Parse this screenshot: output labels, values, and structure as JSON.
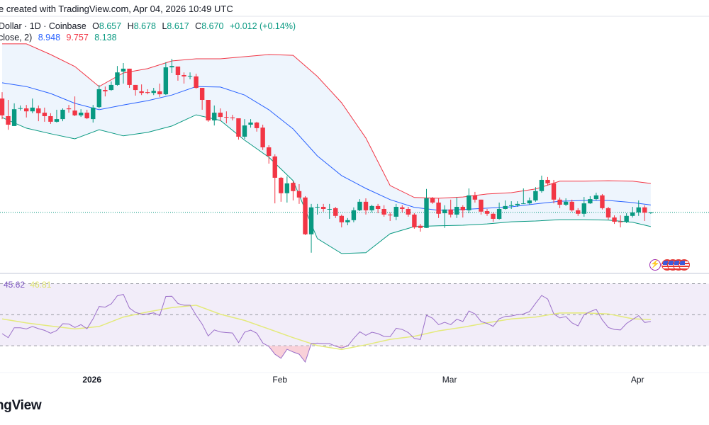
{
  "header": {
    "text": "e created with TradingView.com, Apr 04, 2026 10:49 UTC"
  },
  "legend": {
    "symbol": "Dollar · 1D · Coinbase",
    "o_label": "O",
    "o": "8.657",
    "h_label": "H",
    "h": "8.678",
    "l_label": "L",
    "l": "8.617",
    "c_label": "C",
    "c": "8.670",
    "change": "+0.012 (+0.14%)",
    "bb_label": "close, 2)",
    "bb_basis": "8.948",
    "bb_upper": "9.757",
    "bb_lower": "8.138"
  },
  "rsi_legend": {
    "rsi": "45.62",
    "rsi_ma": "46.81"
  },
  "logo": {
    "text": "ngView"
  },
  "colors": {
    "up": "#089981",
    "down": "#f23645",
    "basis": "#2962ff",
    "upper": "#f23645",
    "lower": "#089981",
    "band_fill": "#eef5fd",
    "rsi": "#9b6fc9",
    "rsi_ma": "#e4ea7c",
    "rsi_bg": "#f2edf9",
    "price_line": "#089981"
  },
  "icons": [
    "lightning-icon",
    "us-flag-icon",
    "us-flag-icon",
    "us-flag-icon",
    "us-flag-icon"
  ],
  "chart_data": [
    {
      "type": "candlestick",
      "ylim": [
        6.41,
        15.36
      ],
      "grid": false,
      "last_price": 8.67,
      "x_ticks": [
        {
          "date": "2026-01-01",
          "label": "2026",
          "bold": true
        },
        {
          "date": "2026-02-01",
          "label": "Feb"
        },
        {
          "date": "2026-03-01",
          "label": "Mar"
        },
        {
          "date": "2026-04-01",
          "label": "Apr"
        }
      ],
      "candles": [
        [
          "2025-12-18",
          12.94,
          13.18,
          12.17,
          12.31
        ],
        [
          "2025-12-19",
          12.28,
          12.89,
          11.77,
          11.96
        ],
        [
          "2025-12-20",
          11.91,
          12.76,
          11.91,
          12.54
        ],
        [
          "2025-12-21",
          12.56,
          12.68,
          12.49,
          12.58
        ],
        [
          "2025-12-22",
          12.57,
          12.7,
          12.23,
          12.46
        ],
        [
          "2025-12-23",
          12.46,
          12.94,
          12.39,
          12.6
        ],
        [
          "2025-12-24",
          12.57,
          12.68,
          12.09,
          12.39
        ],
        [
          "2025-12-25",
          12.41,
          12.6,
          12.07,
          12.28
        ],
        [
          "2025-12-26",
          12.28,
          12.39,
          11.99,
          12.07
        ],
        [
          "2025-12-27",
          12.07,
          12.52,
          12.04,
          12.17
        ],
        [
          "2025-12-28",
          12.17,
          12.57,
          12.09,
          12.52
        ],
        [
          "2025-12-29",
          12.57,
          12.7,
          12.41,
          12.54
        ],
        [
          "2025-12-30",
          12.49,
          13.02,
          12.28,
          12.31
        ],
        [
          "2025-12-31",
          12.31,
          12.54,
          12.25,
          12.41
        ],
        [
          "2026-01-01",
          12.41,
          12.52,
          12.17,
          12.2
        ],
        [
          "2026-01-02",
          12.17,
          12.7,
          12.04,
          12.6
        ],
        [
          "2026-01-03",
          12.62,
          13.45,
          12.57,
          13.29
        ],
        [
          "2026-01-04",
          13.26,
          13.39,
          13.02,
          13.21
        ],
        [
          "2026-01-05",
          13.26,
          13.58,
          13.23,
          13.45
        ],
        [
          "2026-01-06",
          13.45,
          14.16,
          13.42,
          13.92
        ],
        [
          "2026-01-07",
          13.95,
          14.27,
          13.5,
          14.06
        ],
        [
          "2026-01-08",
          14.06,
          14.06,
          13.34,
          13.45
        ],
        [
          "2026-01-09",
          13.45,
          13.45,
          13.05,
          13.26
        ],
        [
          "2026-01-10",
          13.21,
          13.47,
          13.07,
          13.15
        ],
        [
          "2026-01-11",
          13.18,
          13.29,
          13.1,
          13.15
        ],
        [
          "2026-01-12",
          13.15,
          13.34,
          13.07,
          13.23
        ],
        [
          "2026-01-13",
          13.21,
          13.5,
          13.0,
          13.1
        ],
        [
          "2026-01-14",
          13.1,
          14.3,
          13.07,
          14.11
        ],
        [
          "2026-01-15",
          14.11,
          14.43,
          13.9,
          14.16
        ],
        [
          "2026-01-16",
          14.14,
          14.14,
          13.61,
          13.82
        ],
        [
          "2026-01-17",
          13.82,
          13.92,
          13.5,
          13.77
        ],
        [
          "2026-01-18",
          13.77,
          13.92,
          13.66,
          13.79
        ],
        [
          "2026-01-19",
          13.77,
          13.87,
          13.31,
          13.34
        ],
        [
          "2026-01-20",
          13.34,
          13.34,
          12.52,
          12.89
        ],
        [
          "2026-01-21",
          12.89,
          12.89,
          12.07,
          12.12
        ],
        [
          "2026-01-22",
          12.12,
          12.68,
          11.93,
          12.41
        ],
        [
          "2026-01-23",
          12.41,
          12.57,
          12.09,
          12.25
        ],
        [
          "2026-01-24",
          12.25,
          12.46,
          12.01,
          12.23
        ],
        [
          "2026-01-25",
          12.23,
          12.33,
          12.12,
          12.2
        ],
        [
          "2026-01-26",
          12.2,
          12.2,
          11.4,
          11.51
        ],
        [
          "2026-01-27",
          11.51,
          12.17,
          11.43,
          11.93
        ],
        [
          "2026-01-28",
          11.96,
          12.17,
          11.85,
          12.04
        ],
        [
          "2026-01-29",
          12.04,
          12.07,
          11.7,
          11.83
        ],
        [
          "2026-01-30",
          11.85,
          11.96,
          11.01,
          11.11
        ],
        [
          "2026-01-31",
          11.11,
          11.19,
          10.5,
          10.79
        ],
        [
          "2026-02-01",
          10.77,
          10.85,
          9.01,
          9.97
        ],
        [
          "2026-02-02",
          9.97,
          10.0,
          9.07,
          9.39
        ],
        [
          "2026-02-03",
          9.39,
          10.02,
          9.04,
          9.76
        ],
        [
          "2026-02-04",
          9.78,
          9.84,
          9.12,
          9.47
        ],
        [
          "2026-02-05",
          9.47,
          9.73,
          8.99,
          9.23
        ],
        [
          "2026-02-06",
          9.23,
          9.28,
          7.82,
          7.85
        ],
        [
          "2026-02-07",
          7.85,
          8.99,
          7.16,
          8.86
        ],
        [
          "2026-02-08",
          8.86,
          8.99,
          8.59,
          8.88
        ],
        [
          "2026-02-09",
          8.88,
          8.99,
          8.7,
          8.8
        ],
        [
          "2026-02-10",
          8.8,
          8.99,
          8.43,
          8.8
        ],
        [
          "2026-02-11",
          8.83,
          8.88,
          8.46,
          8.54
        ],
        [
          "2026-02-12",
          8.54,
          8.59,
          8.11,
          8.3
        ],
        [
          "2026-02-13",
          8.3,
          8.46,
          8.19,
          8.38
        ],
        [
          "2026-02-14",
          8.38,
          8.86,
          8.3,
          8.75
        ],
        [
          "2026-02-15",
          8.75,
          9.17,
          8.72,
          9.07
        ],
        [
          "2026-02-16",
          9.07,
          9.2,
          8.59,
          8.75
        ],
        [
          "2026-02-17",
          8.75,
          8.96,
          8.67,
          8.91
        ],
        [
          "2026-02-18",
          8.91,
          8.99,
          8.64,
          8.8
        ],
        [
          "2026-02-19",
          8.8,
          8.94,
          8.51,
          8.59
        ],
        [
          "2026-02-20",
          8.59,
          8.67,
          8.35,
          8.56
        ],
        [
          "2026-02-21",
          8.51,
          8.99,
          8.38,
          8.88
        ],
        [
          "2026-02-22",
          8.86,
          8.94,
          8.67,
          8.8
        ],
        [
          "2026-02-23",
          8.8,
          8.88,
          8.51,
          8.59
        ],
        [
          "2026-02-24",
          8.59,
          8.64,
          8.06,
          8.11
        ],
        [
          "2026-02-25",
          8.17,
          8.24,
          7.95,
          8.09
        ],
        [
          "2026-02-26",
          8.09,
          9.55,
          8.09,
          9.2
        ],
        [
          "2026-02-27",
          9.2,
          9.25,
          8.99,
          9.04
        ],
        [
          "2026-02-28",
          9.04,
          9.2,
          8.46,
          8.62
        ],
        [
          "2026-03-01",
          8.64,
          8.94,
          8.09,
          8.78
        ],
        [
          "2026-03-02",
          8.78,
          9.15,
          8.48,
          8.59
        ],
        [
          "2026-03-03",
          8.59,
          9.23,
          8.46,
          8.88
        ],
        [
          "2026-03-04",
          8.88,
          8.94,
          8.48,
          8.75
        ],
        [
          "2026-03-05",
          8.75,
          9.57,
          8.64,
          9.31
        ],
        [
          "2026-03-06",
          9.31,
          9.44,
          9.04,
          9.15
        ],
        [
          "2026-03-07",
          9.15,
          9.15,
          8.59,
          8.7
        ],
        [
          "2026-03-08",
          8.72,
          8.8,
          8.54,
          8.62
        ],
        [
          "2026-03-09",
          8.62,
          8.67,
          8.32,
          8.43
        ],
        [
          "2026-03-10",
          8.43,
          9.04,
          8.4,
          8.8
        ],
        [
          "2026-03-11",
          8.8,
          9.12,
          8.78,
          8.91
        ],
        [
          "2026-03-12",
          8.91,
          9.09,
          8.8,
          8.94
        ],
        [
          "2026-03-13",
          8.94,
          9.09,
          8.88,
          8.99
        ],
        [
          "2026-03-14",
          8.99,
          9.57,
          8.99,
          9.01
        ],
        [
          "2026-03-15",
          9.01,
          9.23,
          8.96,
          9.12
        ],
        [
          "2026-03-16",
          9.12,
          9.62,
          9.07,
          9.47
        ],
        [
          "2026-03-17",
          9.47,
          10.05,
          9.41,
          9.89
        ],
        [
          "2026-03-18",
          9.89,
          10.0,
          9.68,
          9.76
        ],
        [
          "2026-03-19",
          9.76,
          9.89,
          9.01,
          9.15
        ],
        [
          "2026-03-20",
          9.15,
          9.23,
          8.83,
          8.96
        ],
        [
          "2026-03-21",
          8.96,
          9.2,
          8.91,
          9.07
        ],
        [
          "2026-03-22",
          9.07,
          9.15,
          8.7,
          8.75
        ],
        [
          "2026-03-23",
          8.75,
          8.83,
          8.54,
          8.62
        ],
        [
          "2026-03-24",
          8.62,
          9.25,
          8.51,
          9.01
        ],
        [
          "2026-03-25",
          9.01,
          9.28,
          8.99,
          9.17
        ],
        [
          "2026-03-26",
          9.17,
          9.41,
          9.12,
          9.31
        ],
        [
          "2026-03-27",
          9.31,
          9.36,
          8.78,
          8.83
        ],
        [
          "2026-03-28",
          8.83,
          8.88,
          8.4,
          8.48
        ],
        [
          "2026-03-29",
          8.48,
          8.56,
          8.24,
          8.32
        ],
        [
          "2026-03-30",
          8.33,
          8.56,
          8.11,
          8.32
        ],
        [
          "2026-03-31",
          8.32,
          8.64,
          8.27,
          8.54
        ],
        [
          "2026-04-01",
          8.54,
          8.88,
          8.48,
          8.67
        ],
        [
          "2026-04-02",
          8.67,
          9.12,
          8.54,
          8.86
        ],
        [
          "2026-04-03",
          8.86,
          8.94,
          8.35,
          8.66
        ],
        [
          "2026-04-04",
          8.657,
          8.678,
          8.617,
          8.67
        ]
      ],
      "bollinger": {
        "dates": [
          "2025-12-18",
          "2025-12-22",
          "2025-12-26",
          "2025-12-30",
          "2026-01-03",
          "2026-01-07",
          "2026-01-11",
          "2026-01-15",
          "2026-01-19",
          "2026-01-23",
          "2026-01-27",
          "2026-01-31",
          "2026-02-04",
          "2026-02-08",
          "2026-02-12",
          "2026-02-16",
          "2026-02-20",
          "2026-02-24",
          "2026-02-28",
          "2026-03-04",
          "2026-03-08",
          "2026-03-12",
          "2026-03-16",
          "2026-03-20",
          "2026-03-24",
          "2026-03-28",
          "2026-04-01",
          "2026-04-04"
        ],
        "upper": [
          14.99,
          14.99,
          14.59,
          14.14,
          13.39,
          13.9,
          14.06,
          14.35,
          14.43,
          14.43,
          14.51,
          14.59,
          14.56,
          13.77,
          12.78,
          11.46,
          9.68,
          9.23,
          9.2,
          9.25,
          9.36,
          9.41,
          9.55,
          9.84,
          9.84,
          9.86,
          9.84,
          9.757
        ],
        "basis": [
          13.53,
          13.39,
          13.13,
          12.76,
          12.52,
          12.7,
          12.86,
          13.07,
          13.39,
          13.37,
          13.07,
          12.52,
          11.8,
          10.79,
          10.05,
          9.57,
          9.15,
          8.86,
          8.75,
          8.78,
          8.83,
          8.88,
          8.99,
          9.09,
          9.12,
          9.12,
          9.04,
          8.948
        ],
        "lower": [
          12.23,
          11.83,
          11.62,
          11.43,
          11.77,
          11.54,
          11.67,
          11.91,
          12.33,
          12.12,
          11.38,
          10.74,
          9.86,
          7.69,
          7.13,
          7.16,
          7.87,
          8.14,
          8.17,
          8.19,
          8.24,
          8.32,
          8.35,
          8.4,
          8.4,
          8.38,
          8.3,
          8.138
        ]
      }
    },
    {
      "type": "line",
      "ylim": [
        0,
        100
      ],
      "levels": [
        70,
        50,
        30
      ],
      "rsi": [
        37.8,
        35.2,
        41.6,
        41.6,
        40.8,
        42.4,
        41.0,
        39.9,
        38.1,
        39.8,
        44.2,
        44.0,
        41.8,
        43.6,
        41.0,
        47.4,
        55.3,
        54.9,
        57.0,
        62.2,
        63.1,
        54.3,
        51.5,
        50.3,
        50.5,
        51.2,
        49.5,
        61.8,
        61.9,
        57.2,
        56.1,
        56.1,
        49.7,
        43.9,
        36.3,
        40.2,
        38.9,
        38.5,
        38.2,
        32.0,
        38.7,
        40.1,
        38.1,
        31.8,
        29.5,
        24.5,
        21.9,
        27.7,
        26.0,
        24.5,
        19.5,
        31.4,
        31.7,
        31.4,
        31.4,
        29.7,
        28.6,
        29.8,
        34.7,
        39.0,
        36.7,
        38.7,
        37.8,
        36.0,
        35.8,
        41.3,
        40.5,
        38.5,
        34.7,
        34.0,
        49.7,
        47.7,
        43.6,
        45.1,
        43.6,
        47.1,
        45.6,
        52.4,
        50.5,
        45.6,
        44.4,
        42.5,
        47.4,
        48.9,
        49.2,
        50.0,
        50.5,
        52.0,
        57.3,
        62.4,
        60.1,
        50.5,
        47.9,
        48.8,
        44.8,
        42.8,
        50.0,
        52.0,
        53.5,
        46.6,
        41.8,
        40.5,
        40.2,
        44.4,
        46.9,
        49.4,
        45.0,
        45.62
      ],
      "rsi_ma": [
        47.3,
        44.7,
        42.7,
        40.8,
        42.4,
        48.5,
        51.8,
        54.6,
        56.1,
        50.3,
        46.3,
        40.8,
        35.2,
        30.1,
        27.6,
        30.6,
        34.1,
        36.1,
        39.6,
        41.9,
        44.8,
        47.3,
        48.5,
        51.1,
        51.2,
        50.5,
        47.4,
        46.81
      ]
    }
  ]
}
